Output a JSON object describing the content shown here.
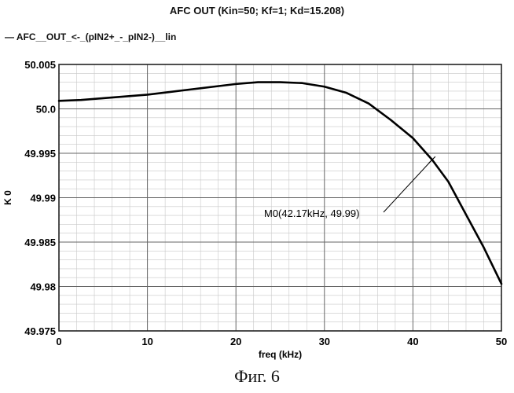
{
  "chart_data": {
    "type": "line",
    "title": "AFC OUT (Kin=50; Kf=1; Kd=15.208)",
    "xlabel": "freq (kHz)",
    "ylabel": "K 0",
    "xlim": [
      0,
      50
    ],
    "ylim": [
      49.975,
      50.005
    ],
    "x_ticks": [
      "0",
      "10",
      "20",
      "30",
      "40",
      "50"
    ],
    "y_ticks": [
      "50.005",
      "50.0",
      "49.995",
      "49.99",
      "49.985",
      "49.98",
      "49.975"
    ],
    "grid": true,
    "legend_position": "top-left",
    "series": [
      {
        "name": "AFC__OUT_<-_(pIN2+_-_pIN2-)__lin",
        "color": "#000000",
        "x": [
          0,
          2.5,
          5,
          7.5,
          10,
          12.5,
          15,
          17.5,
          20,
          22.5,
          25,
          27.5,
          30,
          32.5,
          35,
          37.5,
          40,
          42.17,
          44,
          46,
          48,
          50
        ],
        "y": [
          50.0009,
          50.001,
          50.0012,
          50.0014,
          50.0016,
          50.0019,
          50.0022,
          50.0025,
          50.0028,
          50.003,
          50.003,
          50.0029,
          50.0025,
          50.0018,
          50.0006,
          49.99875,
          49.9967,
          49.99427,
          49.9918,
          49.9881,
          49.9844,
          49.9803
        ]
      }
    ],
    "marker": {
      "label": "M0(42.17kHz, 49.99)",
      "x": 42.17,
      "y": 49.99427
    }
  },
  "caption": "Фиг. 6"
}
